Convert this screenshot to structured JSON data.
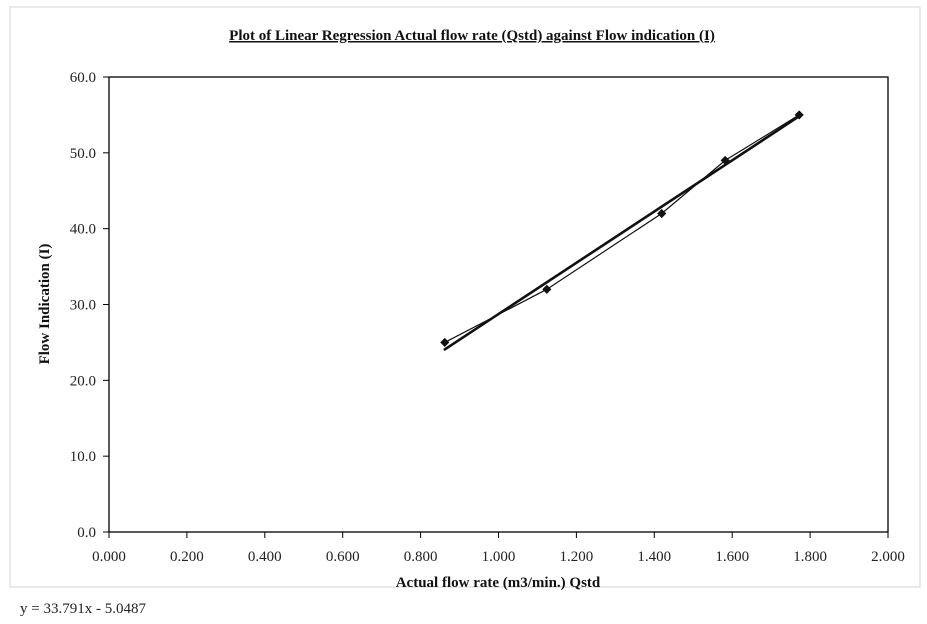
{
  "chart_data": {
    "type": "scatter",
    "title": "Plot of Linear Regression Actual flow rate (Qstd) against Flow indication (I)",
    "xlabel": "Actual flow rate (m3/min.) Qstd",
    "ylabel": "Flow Indication (I)",
    "xlim": [
      0.0,
      2.0
    ],
    "ylim": [
      0.0,
      60.0
    ],
    "x_tick_labels": [
      "0.000",
      "0.200",
      "0.400",
      "0.600",
      "0.800",
      "1.000",
      "1.200",
      "1.400",
      "1.600",
      "1.800",
      "2.000"
    ],
    "y_tick_labels": [
      "0.0",
      "10.0",
      "20.0",
      "30.0",
      "40.0",
      "50.0",
      "60.0"
    ],
    "grid": false,
    "legend": "none",
    "series": [
      {
        "x": [
          0.862,
          1.124,
          1.419,
          1.582,
          1.772
        ],
        "y": [
          25.0,
          32.0,
          42.0,
          49.0,
          55.0
        ],
        "marker": "diamond",
        "connected": true,
        "color": "#111111"
      }
    ],
    "trendline": {
      "slope": 33.791,
      "intercept": -5.0487,
      "x_range": [
        0.862,
        1.772
      ],
      "color": "#111111"
    },
    "equation": "y = 33.791x - 5.0487"
  }
}
